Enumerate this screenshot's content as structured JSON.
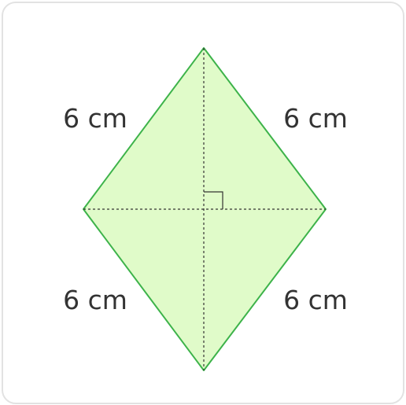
{
  "figure": {
    "shape": "rhombus",
    "fill_color": "#e0fbc9",
    "stroke_color": "#3db34a",
    "diagonal_color": "#333333",
    "right_angle_marker": true,
    "sides": {
      "top_left": "6 cm",
      "top_right": "6 cm",
      "bottom_left": "6 cm",
      "bottom_right": "6 cm"
    }
  }
}
